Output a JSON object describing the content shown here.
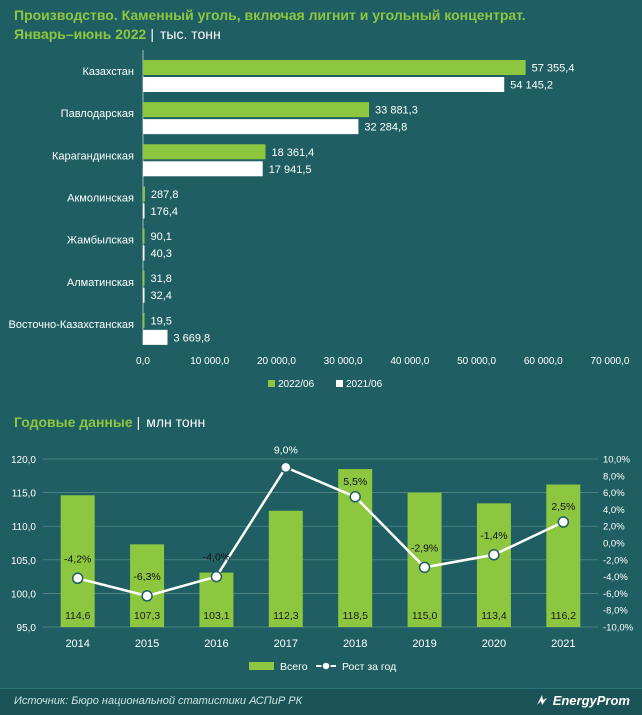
{
  "header": {
    "title": "Производство. Каменный уголь, включая лигнит и угольный концентрат.",
    "period": "Январь–июнь 2022",
    "unit": "тыс. тонн"
  },
  "annual_header": {
    "title": "Годовые данные",
    "unit": "млн тонн"
  },
  "footer": {
    "source": "Источник: Бюро национальной статистики АСПиР РК",
    "brand": "EnergyProm"
  },
  "colors": {
    "green": "#8dc63f",
    "white": "#ffffff",
    "background": "#1f5f63"
  },
  "chart_data": [
    {
      "type": "bar",
      "orientation": "horizontal",
      "categories": [
        "Казахстан",
        "Павлодарская",
        "Карагандинская",
        "Акмолинская",
        "Жамбылская",
        "Алматинская",
        "Восточно-Казахстанская"
      ],
      "series": [
        {
          "name": "2022/06",
          "color": "#8dc63f",
          "values": [
            57355.4,
            33881.3,
            18361.4,
            287.8,
            90.1,
            31.8,
            19.5
          ],
          "labels": [
            "57 355,4",
            "33 881,3",
            "18 361,4",
            "287,8",
            "90,1",
            "31,8",
            "19,5"
          ]
        },
        {
          "name": "2021/06",
          "color": "#ffffff",
          "values": [
            54145.2,
            32284.8,
            17941.5,
            176.4,
            40.3,
            32.4,
            3669.8
          ],
          "labels": [
            "54 145,2",
            "32 284,8",
            "17 941,5",
            "176,4",
            "40,3",
            "32,4",
            "3 669,8"
          ]
        }
      ],
      "xlim": [
        0,
        70000
      ],
      "xticks": [
        "0,0",
        "10 000,0",
        "20 000,0",
        "30 000,0",
        "40 000,0",
        "50 000,0",
        "60 000,0",
        "70 000,0"
      ],
      "legend_position": "bottom"
    },
    {
      "type": "bar+line",
      "categories": [
        "2014",
        "2015",
        "2016",
        "2017",
        "2018",
        "2019",
        "2020",
        "2021"
      ],
      "series": [
        {
          "name": "Всего",
          "type": "bar",
          "axis": "left",
          "color": "#8dc63f",
          "values": [
            114.6,
            107.3,
            103.1,
            112.3,
            118.5,
            115.0,
            113.4,
            116.2
          ],
          "labels": [
            "114,6",
            "107,3",
            "103,1",
            "112,3",
            "118,5",
            "115,0",
            "113,4",
            "116,2"
          ]
        },
        {
          "name": "Рост за год",
          "type": "line",
          "axis": "right",
          "color": "#ffffff",
          "values": [
            -4.2,
            -6.3,
            -4.0,
            9.0,
            5.5,
            -2.9,
            -1.4,
            2.5
          ],
          "labels": [
            "-4,2%",
            "-6,3%",
            "-4,0%",
            "9,0%",
            "5,5%",
            "-2,9%",
            "-1,4%",
            "2,5%"
          ]
        }
      ],
      "ylim_left": [
        95,
        120
      ],
      "yticks_left": [
        "95,0",
        "100,0",
        "105,0",
        "110,0",
        "115,0",
        "120,0"
      ],
      "ylim_right": [
        -10,
        10
      ],
      "yticks_right": [
        "-10,0%",
        "-8,0%",
        "-6,0%",
        "-4,0%",
        "-2,0%",
        "0,0%",
        "2,0%",
        "4,0%",
        "6,0%",
        "8,0%",
        "10,0%"
      ],
      "grid": true,
      "legend_position": "bottom"
    }
  ]
}
